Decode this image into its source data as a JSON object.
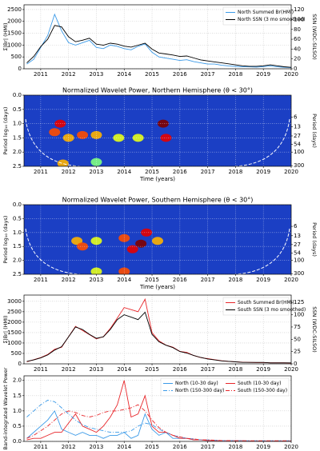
{
  "chart_data": [
    {
      "type": "line",
      "ylabel": "Σ|Br| (HMI)",
      "y2label": "SSN (WDC-SILSO)",
      "xlim": [
        2010.4,
        2020.0
      ],
      "xticks": [
        2011,
        2012,
        2013,
        2014,
        2015,
        2016,
        2017,
        2018,
        2019,
        2020
      ],
      "ylim": [
        0,
        2700
      ],
      "yticks": [
        0,
        500,
        1000,
        1500,
        2000,
        2500
      ],
      "y2lim": [
        0,
        130
      ],
      "y2ticks": [
        0,
        20,
        40,
        60,
        80,
        100,
        120
      ],
      "grid": true,
      "legend": "upper right",
      "legend_ncol": 1,
      "x": [
        2010.5,
        2010.75,
        2011.0,
        2011.25,
        2011.5,
        2011.75,
        2012.0,
        2012.25,
        2012.5,
        2012.75,
        2013.0,
        2013.25,
        2013.5,
        2013.75,
        2014.0,
        2014.25,
        2014.5,
        2014.75,
        2015.0,
        2015.25,
        2015.5,
        2015.75,
        2016.0,
        2016.25,
        2016.5,
        2016.75,
        2017.0,
        2017.25,
        2017.5,
        2017.75,
        2018.0,
        2018.25,
        2018.5,
        2018.75,
        2019.0,
        2019.25,
        2019.5,
        2019.75,
        2020.0
      ],
      "series": [
        {
          "name": "North Summed Br(HMI)",
          "color": "#3b9ae8",
          "dash": "solid",
          "values": [
            200,
            400,
            900,
            1400,
            2300,
            1600,
            1100,
            1000,
            1100,
            1200,
            900,
            850,
            1000,
            950,
            850,
            800,
            950,
            1050,
            700,
            500,
            450,
            400,
            350,
            380,
            300,
            250,
            200,
            200,
            150,
            120,
            100,
            80,
            80,
            70,
            90,
            120,
            80,
            60,
            50
          ]
        },
        {
          "name": "North SSN (3 mo smoothed)",
          "color": "#000000",
          "dash": "solid",
          "axis": "y2",
          "values": [
            12,
            25,
            45,
            60,
            88,
            85,
            65,
            55,
            58,
            62,
            50,
            48,
            52,
            50,
            46,
            44,
            48,
            52,
            40,
            32,
            30,
            28,
            25,
            26,
            22,
            18,
            16,
            14,
            12,
            10,
            8,
            6,
            5,
            5,
            6,
            8,
            6,
            4,
            3
          ]
        }
      ]
    },
    {
      "type": "heatmap",
      "title": "Normalized Wavelet Power, Northern Hemisphere (θ < 30°)",
      "xlabel": "Time (years)",
      "ylabel": "Period log₁₀ (days)",
      "y2label": "Period (days)",
      "xlim": [
        2010.4,
        2020.0
      ],
      "xticks": [
        2011,
        2012,
        2013,
        2014,
        2015,
        2016,
        2017,
        2018,
        2019,
        2020
      ],
      "ylim": [
        2.5,
        0
      ],
      "yticks": [
        {
          "value": 0,
          "label": "0.0"
        },
        {
          "value": 0.5,
          "label": "0.5"
        },
        {
          "value": 1,
          "label": "1.0"
        },
        {
          "value": 1.5,
          "label": "1.5"
        },
        {
          "value": 2,
          "label": "2.0"
        },
        {
          "value": 2.5,
          "label": "2.5"
        }
      ],
      "y2lim": [
        316,
        1
      ],
      "y2log": true,
      "y2ticks": [
        6,
        13,
        27,
        54,
        100,
        300
      ],
      "colormap": "jet",
      "grid": true,
      "x": [
        2011.5,
        2011.7,
        2012.0,
        2012.5,
        2013.0,
        2013.8,
        2014.5,
        2015.4,
        2015.5,
        2011.8,
        2013.0
      ],
      "y": [
        1.3,
        1.0,
        1.5,
        1.4,
        1.4,
        1.5,
        1.5,
        1.0,
        1.5,
        2.4,
        2.35
      ],
      "values": [
        0.8,
        0.9,
        0.7,
        0.8,
        0.7,
        0.6,
        0.6,
        1.0,
        0.9,
        0.7,
        0.5
      ]
    },
    {
      "type": "heatmap",
      "title": "Normalized Wavelet Power, Southern Hemisphere (θ < 30°)",
      "xlabel": "Time (years)",
      "ylabel": "Period log₁₀ (days)",
      "y2label": "Period (days)",
      "xlim": [
        2010.4,
        2020.0
      ],
      "xticks": [
        2011,
        2012,
        2013,
        2014,
        2015,
        2016,
        2017,
        2018,
        2019,
        2020
      ],
      "ylim": [
        2.5,
        0
      ],
      "yticks": [
        {
          "value": 0,
          "label": "0.0"
        },
        {
          "value": 0.5,
          "label": "0.5"
        },
        {
          "value": 1,
          "label": "1.0"
        },
        {
          "value": 1.5,
          "label": "1.5"
        },
        {
          "value": 2,
          "label": "2.0"
        },
        {
          "value": 2.5,
          "label": "2.5"
        }
      ],
      "y2lim": [
        316,
        1
      ],
      "y2log": true,
      "y2ticks": [
        6,
        13,
        27,
        54,
        100,
        300
      ],
      "colormap": "jet",
      "grid": true,
      "x": [
        2012.3,
        2012.5,
        2013.0,
        2014.0,
        2014.3,
        2014.6,
        2014.8,
        2015.2,
        2014.0,
        2013.0
      ],
      "y": [
        1.3,
        1.5,
        1.3,
        1.2,
        1.6,
        1.4,
        1.0,
        1.3,
        2.4,
        2.4
      ],
      "values": [
        0.7,
        0.8,
        0.6,
        0.8,
        0.9,
        1.0,
        0.9,
        0.7,
        0.8,
        0.6
      ]
    },
    {
      "type": "line",
      "ylabel": "Σ|Br| (HMI)",
      "y2label": "SSN (WDC-SILSO)",
      "xlim": [
        2010.4,
        2020.0
      ],
      "xticks": [
        2011,
        2012,
        2013,
        2014,
        2015,
        2016,
        2017,
        2018,
        2019,
        2020
      ],
      "ylim": [
        0,
        3300
      ],
      "yticks": [
        0,
        500,
        1000,
        1500,
        2000,
        2500,
        3000
      ],
      "y2lim": [
        0,
        140
      ],
      "y2ticks": [
        0,
        25,
        50,
        75,
        100,
        125
      ],
      "grid": true,
      "legend": "upper right",
      "legend_ncol": 1,
      "x": [
        2010.5,
        2010.75,
        2011.0,
        2011.25,
        2011.5,
        2011.75,
        2012.0,
        2012.25,
        2012.5,
        2012.75,
        2013.0,
        2013.25,
        2013.5,
        2013.75,
        2014.0,
        2014.25,
        2014.5,
        2014.75,
        2015.0,
        2015.25,
        2015.5,
        2015.75,
        2016.0,
        2016.25,
        2016.5,
        2016.75,
        2017.0,
        2017.25,
        2017.5,
        2017.75,
        2018.0,
        2018.25,
        2018.5,
        2018.75,
        2019.0,
        2019.25,
        2019.5,
        2019.75,
        2020.0
      ],
      "series": [
        {
          "name": "South Summed Br(HMI)",
          "color": "#e8262a",
          "dash": "solid",
          "values": [
            100,
            200,
            300,
            450,
            700,
            800,
            1300,
            1800,
            1600,
            1400,
            1200,
            1300,
            1700,
            2200,
            2700,
            2600,
            2500,
            3100,
            1500,
            1100,
            900,
            800,
            600,
            550,
            400,
            300,
            250,
            200,
            150,
            120,
            100,
            80,
            70,
            60,
            60,
            50,
            50,
            50,
            40
          ]
        },
        {
          "name": "South SSN (3 mo smoothed)",
          "color": "#000000",
          "dash": "solid",
          "axis": "y2",
          "values": [
            5,
            8,
            12,
            18,
            28,
            35,
            55,
            75,
            70,
            60,
            52,
            55,
            70,
            90,
            100,
            95,
            90,
            105,
            60,
            45,
            38,
            33,
            25,
            22,
            17,
            13,
            10,
            8,
            6,
            5,
            4,
            3,
            3,
            3,
            3,
            2,
            2,
            2,
            2
          ]
        }
      ]
    },
    {
      "type": "line",
      "ylabel": "Band-integrated Wavelet Power",
      "xlim": [
        2010.4,
        2020.0
      ],
      "xticks": [
        2011,
        2012,
        2013,
        2014,
        2015,
        2016,
        2017,
        2018,
        2019,
        2020
      ],
      "ylim": [
        0,
        2.15
      ],
      "yticks": [
        {
          "value": 0,
          "label": "0.0"
        },
        {
          "value": 0.5,
          "label": "0.5"
        },
        {
          "value": 1,
          "label": "1.0"
        },
        {
          "value": 1.5,
          "label": "1.5"
        },
        {
          "value": 2,
          "label": "2.0"
        }
      ],
      "grid": true,
      "legend": "upper right",
      "legend_ncol": 2,
      "x": [
        2010.5,
        2010.75,
        2011.0,
        2011.25,
        2011.5,
        2011.75,
        2012.0,
        2012.25,
        2012.5,
        2012.75,
        2013.0,
        2013.25,
        2013.5,
        2013.75,
        2014.0,
        2014.25,
        2014.5,
        2014.75,
        2015.0,
        2015.25,
        2015.5,
        2015.75,
        2016.0,
        2016.25,
        2016.5,
        2016.75,
        2017.0,
        2017.25,
        2017.5,
        2017.75,
        2018.0,
        2018.25,
        2018.5,
        2018.75,
        2019.0,
        2019.25,
        2019.5,
        2019.75,
        2020.0
      ],
      "series": [
        {
          "name": "North (10-30 day)",
          "color": "#3b9ae8",
          "dash": "solid",
          "values": [
            0.1,
            0.3,
            0.5,
            0.7,
            1.0,
            0.4,
            0.3,
            0.2,
            0.3,
            0.2,
            0.2,
            0.1,
            0.2,
            0.2,
            0.3,
            0.1,
            0.2,
            0.9,
            0.4,
            0.2,
            0.3,
            0.1,
            0.1,
            0.1,
            0.05,
            0.05,
            0.03,
            0.03,
            0.02,
            0.02,
            0.02,
            0.02,
            0.01,
            0.01,
            0.01,
            0.01,
            0.01,
            0.01,
            0.01
          ]
        },
        {
          "name": "South (10-30 day)",
          "color": "#e8262a",
          "dash": "solid",
          "values": [
            0.05,
            0.1,
            0.1,
            0.2,
            0.3,
            0.3,
            0.6,
            0.9,
            0.5,
            0.4,
            0.3,
            0.5,
            0.8,
            1.2,
            2.0,
            0.8,
            0.9,
            1.5,
            0.5,
            0.3,
            0.3,
            0.2,
            0.1,
            0.1,
            0.05,
            0.05,
            0.03,
            0.03,
            0.02,
            0.02,
            0.02,
            0.02,
            0.01,
            0.01,
            0.01,
            0.01,
            0.01,
            0.01,
            0.01
          ]
        },
        {
          "name": "North (150-300 day)",
          "color": "#3b9ae8",
          "dash": "dashdot",
          "values": [
            0.8,
            1.0,
            1.2,
            1.35,
            1.3,
            1.1,
            0.9,
            0.7,
            0.55,
            0.45,
            0.4,
            0.35,
            0.3,
            0.3,
            0.3,
            0.35,
            0.5,
            0.6,
            0.55,
            0.4,
            0.3,
            0.2,
            0.15,
            0.1,
            0.08,
            0.05,
            0.05,
            0.04,
            0.03,
            0.03,
            0.02,
            0.02,
            0.02,
            0.02,
            0.02,
            0.02,
            0.02,
            0.02,
            0.02
          ]
        },
        {
          "name": "South (150-300 day)",
          "color": "#e8262a",
          "dash": "dashdot",
          "values": [
            0.1,
            0.2,
            0.35,
            0.5,
            0.7,
            0.9,
            1.0,
            0.95,
            0.85,
            0.8,
            0.85,
            0.95,
            1.0,
            1.0,
            1.05,
            1.1,
            1.2,
            1.0,
            0.7,
            0.45,
            0.3,
            0.2,
            0.15,
            0.1,
            0.08,
            0.05,
            0.05,
            0.04,
            0.03,
            0.03,
            0.02,
            0.02,
            0.02,
            0.02,
            0.02,
            0.02,
            0.02,
            0.02,
            0.02
          ]
        }
      ]
    }
  ]
}
